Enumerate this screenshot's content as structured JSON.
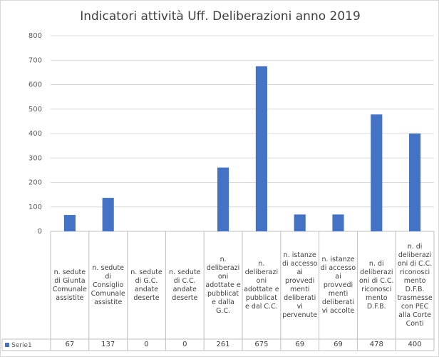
{
  "chart_data": {
    "type": "bar",
    "title": "Indicatori attività Uff. Deliberazioni anno 2019",
    "categories": [
      "n. sedute di Giunta Comunale assistite",
      "n. sedute di Consiglio Comunale assistite",
      "n. sedute di G.C. andate deserte",
      "n. sedute di C.C. andate deserte",
      "n. deliberazioni adottate e pubblicate dalla G.C.",
      "n. deliberazioni adottate e pubblicate dal C.C.",
      "n. istanze di accesso ai provvedimenti deliberativi pervenute",
      "n. istanze di accesso ai provvedimenti deliberativi accolte",
      "n. di deliberazioni di C.C. riconoscimento D.F.B.",
      "n. di deliberazioni di C.C. riconoscimento D.F.B. trasmesse con PEC alla Corte Conti"
    ],
    "series": [
      {
        "name": "Serie1",
        "color": "#4472c4",
        "values": [
          67,
          137,
          0,
          0,
          261,
          675,
          69,
          69,
          478,
          400
        ]
      }
    ],
    "ylim": [
      0,
      800
    ],
    "yticks": [
      0,
      100,
      200,
      300,
      400,
      500,
      600,
      700,
      800
    ],
    "grid": true
  }
}
